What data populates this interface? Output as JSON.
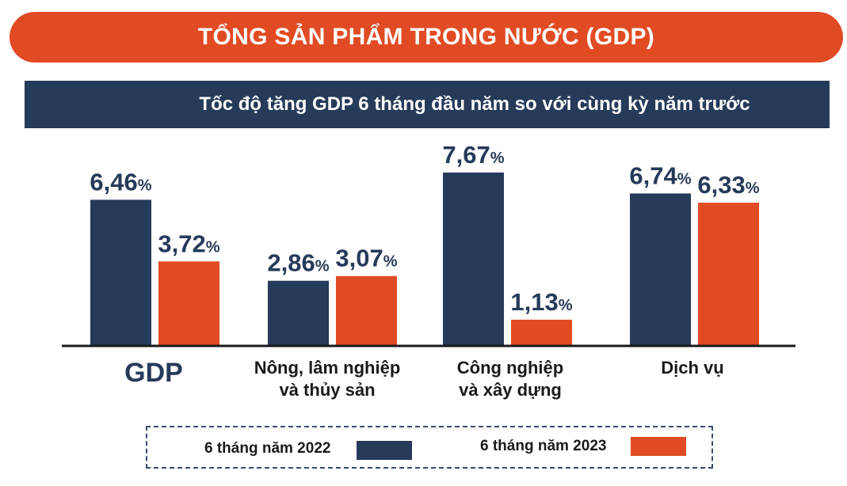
{
  "header": {
    "title": "TỔNG SẢN PHẨM TRONG NƯỚC (GDP)",
    "subtitle": "Tốc độ tăng GDP 6 tháng đầu năm so với cùng kỳ năm trước"
  },
  "chart_data": {
    "type": "bar",
    "title": "Tốc độ tăng GDP 6 tháng đầu năm so với cùng kỳ năm trước",
    "categories": [
      "GDP",
      "Nông, lâm nghiệp và thủy sản",
      "Công nghiệp và xây dựng",
      "Dịch vụ"
    ],
    "category_lines": [
      [
        "GDP"
      ],
      [
        "Nông, lâm nghiệp",
        "và thủy sản"
      ],
      [
        "Công nghiệp",
        "và xây dựng"
      ],
      [
        "Dịch vụ"
      ]
    ],
    "series": [
      {
        "name": "6 tháng năm 2022",
        "values": [
          6.46,
          2.86,
          7.67,
          6.74
        ],
        "labels": [
          "6,46",
          "2,86",
          "7,67",
          "6,74"
        ],
        "color": "#263a59"
      },
      {
        "name": "6 tháng năm 2023",
        "values": [
          3.72,
          3.07,
          1.13,
          6.33
        ],
        "labels": [
          "3,72",
          "3,07",
          "1,13",
          "6,33"
        ],
        "color": "#e14b24"
      }
    ],
    "unit": "%",
    "ylim": [
      0,
      7.67
    ],
    "grid": false,
    "legend_position": "bottom"
  },
  "legend": {
    "items": [
      {
        "label": "6 tháng năm 2022",
        "color": "#263a59"
      },
      {
        "label": "6 tháng năm 2023",
        "color": "#e14b24"
      }
    ]
  }
}
